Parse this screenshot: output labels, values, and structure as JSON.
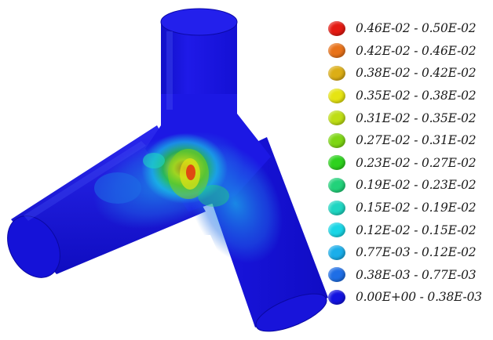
{
  "legend": {
    "items": [
      {
        "label": "0.46E-02 - 0.50E-02",
        "color": "#e41a12"
      },
      {
        "label": "0.42E-02 - 0.46E-02",
        "color": "#e8721a"
      },
      {
        "label": "0.38E-02 - 0.42E-02",
        "color": "#dcae16"
      },
      {
        "label": "0.35E-02 - 0.38E-02",
        "color": "#e6e412"
      },
      {
        "label": "0.31E-02 - 0.35E-02",
        "color": "#bede14"
      },
      {
        "label": "0.27E-02 - 0.31E-02",
        "color": "#7ed614"
      },
      {
        "label": "0.23E-02 - 0.27E-02",
        "color": "#2ed21e"
      },
      {
        "label": "0.19E-02 - 0.23E-02",
        "color": "#22d27a"
      },
      {
        "label": "0.15E-02 - 0.19E-02",
        "color": "#1ed6c2"
      },
      {
        "label": "0.12E-02 - 0.15E-02",
        "color": "#18d6e6"
      },
      {
        "label": "0.77E-03 - 0.12E-02",
        "color": "#1aaeea"
      },
      {
        "label": "0.38E-03 - 0.77E-03",
        "color": "#1e6ee6"
      },
      {
        "label": "0.00E+00 - 0.38E-03",
        "color": "#1212e0"
      }
    ]
  },
  "model": {
    "body_color": "#1c16e6",
    "body_shadow_color": "#0a07a8",
    "highlight_color": "#3a46f2"
  }
}
